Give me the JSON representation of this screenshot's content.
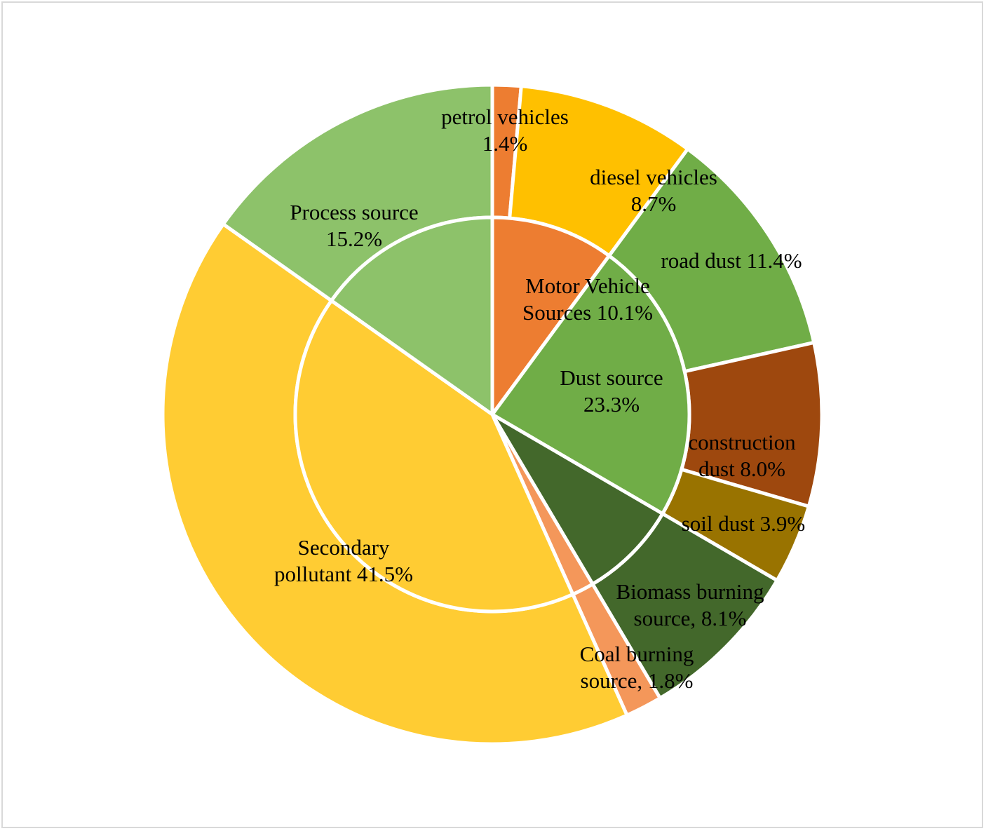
{
  "chart_data": {
    "type": "pie",
    "subtype": "nested-donut",
    "inner": [
      {
        "name": "Motor Vehicle Sources",
        "value": 10.1,
        "color": "#ED7D31",
        "label": [
          "Motor Vehicle",
          "Sources 10.1%"
        ]
      },
      {
        "name": "Dust source",
        "value": 23.3,
        "color": "#70AD47",
        "label": [
          "Dust source",
          "23.3%"
        ]
      },
      {
        "name": "Biomass burning source",
        "value": 8.1,
        "color": "#43682B",
        "label": []
      },
      {
        "name": "Coal burning source",
        "value": 1.8,
        "color": "#F4975A",
        "label": []
      },
      {
        "name": "Secondary pollutant",
        "value": 41.5,
        "color": "#FFCC33",
        "label": [
          "Secondary",
          "pollutant 41.5%"
        ]
      },
      {
        "name": "Process source",
        "value": 15.2,
        "color": "#8DC26A",
        "label": []
      }
    ],
    "outer": [
      {
        "name": "petrol vehicles",
        "value": 1.4,
        "color": "#ED7D31",
        "label": [
          "petrol vehicles",
          "1.4%"
        ]
      },
      {
        "name": "diesel vehicles",
        "value": 8.7,
        "color": "#FFC000",
        "label": [
          "diesel vehicles",
          "8.7%"
        ]
      },
      {
        "name": "road dust",
        "value": 11.4,
        "color": "#70AD47",
        "label": [
          "road dust 11.4%"
        ]
      },
      {
        "name": "construction dust",
        "value": 8.0,
        "color": "#9E480E",
        "label": [
          "construction",
          "dust 8.0%"
        ]
      },
      {
        "name": "soil dust",
        "value": 3.9,
        "color": "#997300",
        "label": [
          "soil dust 3.9%"
        ]
      },
      {
        "name": "Biomass burning source",
        "value": 8.1,
        "color": "#43682B",
        "label": [
          "Biomass burning",
          "source, 8.1%"
        ]
      },
      {
        "name": "Coal burning source",
        "value": 1.8,
        "color": "#F4975A",
        "label": [
          "Coal  burning",
          "source, 1.8%"
        ]
      },
      {
        "name": "Secondary pollutant",
        "value": 41.5,
        "color": "#FFCC33",
        "label": []
      },
      {
        "name": "Process source",
        "value": 15.2,
        "color": "#8DC26A",
        "label": [
          "Process source",
          "15.2%"
        ]
      }
    ],
    "start_angle_deg": 0,
    "direction": "clockwise",
    "legend": "none",
    "separator_color": "#ffffff"
  }
}
